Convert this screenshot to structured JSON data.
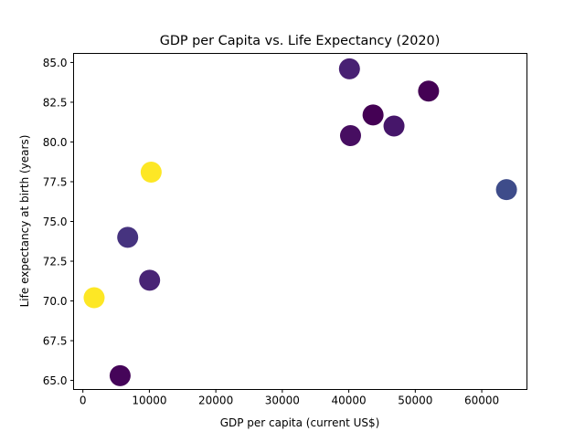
{
  "chart_data": {
    "type": "scatter",
    "title": "GDP per Capita vs. Life Expectancy (2020)",
    "xlabel": "GDP per capita (current US$)",
    "ylabel": "Life expectancy at birth (years)",
    "xlim": [
      -1400,
      66800
    ],
    "ylim": [
      64.43,
      85.57
    ],
    "xticks": [
      0,
      10000,
      20000,
      30000,
      40000,
      50000,
      60000
    ],
    "xtick_labels": [
      "0",
      "10000",
      "20000",
      "30000",
      "40000",
      "50000",
      "60000"
    ],
    "yticks": [
      65.0,
      67.5,
      70.0,
      72.5,
      75.0,
      77.5,
      80.0,
      82.5,
      85.0
    ],
    "ytick_labels": [
      "65.0",
      "67.5",
      "70.0",
      "72.5",
      "75.0",
      "77.5",
      "80.0",
      "82.5",
      "85.0"
    ],
    "grid": false,
    "colormap": "viridis",
    "points": [
      {
        "x": 40100,
        "y": 84.6,
        "color": "#482173"
      },
      {
        "x": 52000,
        "y": 83.2,
        "color": "#440154"
      },
      {
        "x": 43650,
        "y": 81.7,
        "color": "#440154"
      },
      {
        "x": 46800,
        "y": 81.0,
        "color": "#46166a"
      },
      {
        "x": 40260,
        "y": 80.4,
        "color": "#470e61"
      },
      {
        "x": 10270,
        "y": 78.1,
        "color": "#fde725"
      },
      {
        "x": 63720,
        "y": 77.0,
        "color": "#3e4c8a"
      },
      {
        "x": 6740,
        "y": 74.0,
        "color": "#46337f"
      },
      {
        "x": 10040,
        "y": 71.3,
        "color": "#482475"
      },
      {
        "x": 1690,
        "y": 70.2,
        "color": "#fde725"
      },
      {
        "x": 5600,
        "y": 65.3,
        "color": "#450559"
      }
    ]
  }
}
